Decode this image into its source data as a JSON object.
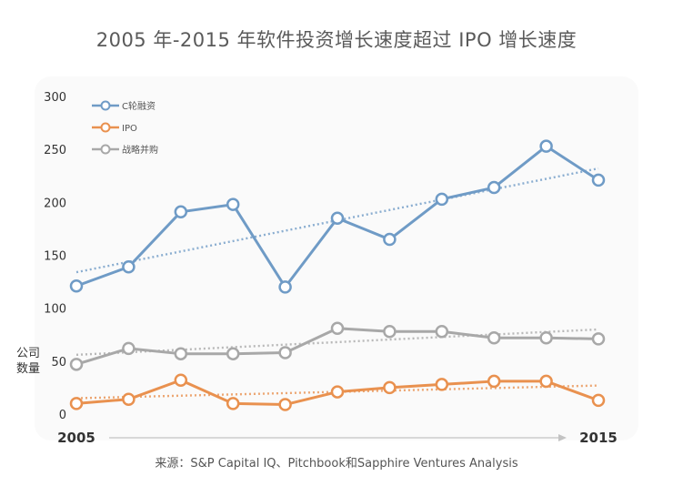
{
  "chart_data": {
    "type": "line",
    "title": "2005 年-2015 年软件投资增长速度超过 IPO 增长速度",
    "ylabel": "公司数量",
    "xlabel": "",
    "x_start_label": "2005",
    "x_end_label": "2015",
    "x": [
      2005,
      2006,
      2007,
      2008,
      2009,
      2010,
      2011,
      2012,
      2013,
      2014,
      2015
    ],
    "ylim": [
      0,
      300
    ],
    "yticks": [
      0,
      50,
      100,
      150,
      200,
      250,
      300
    ],
    "legend_position": "top-left",
    "series": [
      {
        "name": "C轮融资",
        "color": "#6f9bc6",
        "values": [
          121,
          139,
          191,
          198,
          120,
          185,
          165,
          203,
          214,
          253,
          221
        ],
        "trend": [
          134,
          232
        ]
      },
      {
        "name": "IPO",
        "color": "#e9914f",
        "values": [
          10,
          14,
          32,
          10,
          9,
          21,
          25,
          28,
          31,
          31,
          13
        ],
        "trend": [
          15,
          27
        ]
      },
      {
        "name": "战略并购",
        "color": "#a8a8a8",
        "values": [
          47,
          62,
          57,
          57,
          58,
          81,
          78,
          78,
          72,
          72,
          71
        ],
        "trend": [
          56,
          80
        ]
      }
    ],
    "source": "来源：S&P Capital IQ、Pitchbook和Sapphire Ventures Analysis"
  }
}
